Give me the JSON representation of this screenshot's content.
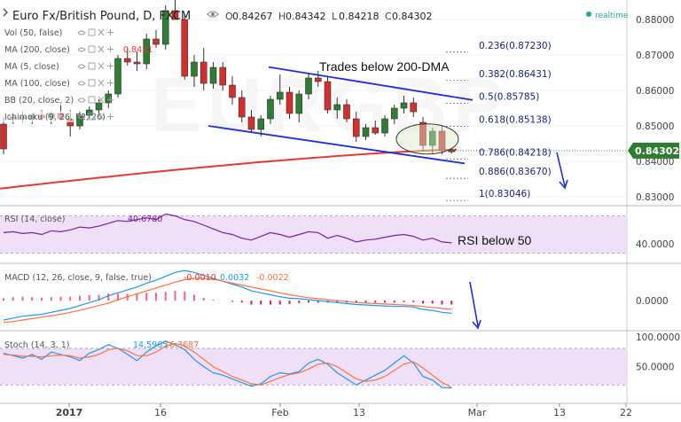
{
  "header": {
    "symbol": "Euro Fx/British Pound, D, FXCM",
    "ohlc": [
      {
        "k": "O",
        "v": "0.84267"
      },
      {
        "k": "H",
        "v": "0.84342"
      },
      {
        "k": "L",
        "v": "0.84218"
      },
      {
        "k": "C",
        "v": "0.84302"
      }
    ],
    "realtime_label": "realtime"
  },
  "indicators": [
    {
      "label": "Vol (50, false)",
      "value": ""
    },
    {
      "label": "MA (200, close)",
      "value": "0.8421"
    },
    {
      "label": "MA (5, close)",
      "value": ""
    },
    {
      "label": "MA (100, close)",
      "value": ""
    },
    {
      "label": "BB (20, close, 2)",
      "value": ""
    },
    {
      "label": "Ichimoku (9, 26, 52, 26)",
      "value": ""
    }
  ],
  "annotations": {
    "trades_below": "Trades below 200-DMA",
    "rsi_below": "RSI below 50"
  },
  "colors": {
    "up": "#26a69a",
    "down": "#ef5350",
    "candle_body_up": "#2e7d32",
    "candle_body_down": "#d32f2f",
    "ma200": "#e53935",
    "channel": "#1f2fd8",
    "price_tag": "#2e7d32",
    "rsi": "#7b1fa2",
    "macd": "#2196f3",
    "signal": "#ff7043",
    "stoch_k": "#2196f3",
    "stoch_d": "#ff7043",
    "band": "#efe0f8"
  },
  "chart_data": [
    {
      "type": "candlestick",
      "title": "Euro Fx/British Pound, D, FXCM",
      "price_axis": {
        "ticks": [
          "0.88000",
          "0.87000",
          "0.86000",
          "0.85000",
          "0.84000",
          "0.83000"
        ],
        "ylim": [
          0.8275,
          0.8855
        ]
      },
      "last_price": "0.84302",
      "x_tick_labels": [
        "2017",
        "16",
        "Feb",
        "13",
        "Mar",
        "13",
        "22"
      ],
      "fibonacci": [
        {
          "ratio": "0.236",
          "price": "0.87230"
        },
        {
          "ratio": "0.382",
          "price": "0.86431"
        },
        {
          "ratio": "0.5",
          "price": "0.85785"
        },
        {
          "ratio": "0.618",
          "price": "0.85138"
        },
        {
          "ratio": "0.786",
          "price": "0.84218"
        },
        {
          "ratio": "0.886",
          "price": "0.83670"
        },
        {
          "ratio": "1",
          "price": "0.83046"
        }
      ],
      "candles": [
        {
          "o": 0.8505,
          "h": 0.8525,
          "l": 0.842,
          "c": 0.8435
        },
        {
          "o": 0.852,
          "h": 0.8535,
          "l": 0.8505,
          "c": 0.8525
        },
        {
          "o": 0.8525,
          "h": 0.854,
          "l": 0.851,
          "c": 0.852
        },
        {
          "o": 0.852,
          "h": 0.8535,
          "l": 0.8505,
          "c": 0.853
        },
        {
          "o": 0.853,
          "h": 0.8545,
          "l": 0.8515,
          "c": 0.8522
        },
        {
          "o": 0.8522,
          "h": 0.854,
          "l": 0.8505,
          "c": 0.8535
        },
        {
          "o": 0.8535,
          "h": 0.856,
          "l": 0.8515,
          "c": 0.852
        },
        {
          "o": 0.852,
          "h": 0.8545,
          "l": 0.847,
          "c": 0.85
        },
        {
          "o": 0.85,
          "h": 0.854,
          "l": 0.849,
          "c": 0.853
        },
        {
          "o": 0.853,
          "h": 0.8555,
          "l": 0.852,
          "c": 0.8545
        },
        {
          "o": 0.8545,
          "h": 0.8575,
          "l": 0.853,
          "c": 0.8565
        },
        {
          "o": 0.8565,
          "h": 0.86,
          "l": 0.855,
          "c": 0.859
        },
        {
          "o": 0.859,
          "h": 0.87,
          "l": 0.858,
          "c": 0.869
        },
        {
          "o": 0.869,
          "h": 0.872,
          "l": 0.867,
          "c": 0.868
        },
        {
          "o": 0.868,
          "h": 0.871,
          "l": 0.8655,
          "c": 0.8675
        },
        {
          "o": 0.8675,
          "h": 0.876,
          "l": 0.866,
          "c": 0.8745
        },
        {
          "o": 0.8745,
          "h": 0.877,
          "l": 0.872,
          "c": 0.873
        },
        {
          "o": 0.873,
          "h": 0.884,
          "l": 0.8715,
          "c": 0.8825
        },
        {
          "o": 0.8825,
          "h": 0.888,
          "l": 0.88,
          "c": 0.88
        },
        {
          "o": 0.88,
          "h": 0.8815,
          "l": 0.863,
          "c": 0.864
        },
        {
          "o": 0.864,
          "h": 0.87,
          "l": 0.861,
          "c": 0.868
        },
        {
          "o": 0.868,
          "h": 0.872,
          "l": 0.86,
          "c": 0.862
        },
        {
          "o": 0.862,
          "h": 0.868,
          "l": 0.8605,
          "c": 0.8665
        },
        {
          "o": 0.8665,
          "h": 0.868,
          "l": 0.86,
          "c": 0.8615
        },
        {
          "o": 0.8615,
          "h": 0.864,
          "l": 0.856,
          "c": 0.858
        },
        {
          "o": 0.858,
          "h": 0.86,
          "l": 0.851,
          "c": 0.8525
        },
        {
          "o": 0.8525,
          "h": 0.8545,
          "l": 0.848,
          "c": 0.849
        },
        {
          "o": 0.849,
          "h": 0.853,
          "l": 0.847,
          "c": 0.852
        },
        {
          "o": 0.852,
          "h": 0.8585,
          "l": 0.8505,
          "c": 0.8575
        },
        {
          "o": 0.8575,
          "h": 0.8645,
          "l": 0.856,
          "c": 0.8595
        },
        {
          "o": 0.8595,
          "h": 0.861,
          "l": 0.852,
          "c": 0.8535
        },
        {
          "o": 0.8535,
          "h": 0.86,
          "l": 0.851,
          "c": 0.859
        },
        {
          "o": 0.859,
          "h": 0.865,
          "l": 0.8575,
          "c": 0.8635
        },
        {
          "o": 0.8635,
          "h": 0.8655,
          "l": 0.861,
          "c": 0.8625
        },
        {
          "o": 0.8625,
          "h": 0.864,
          "l": 0.8535,
          "c": 0.8545
        },
        {
          "o": 0.8545,
          "h": 0.858,
          "l": 0.852,
          "c": 0.856
        },
        {
          "o": 0.856,
          "h": 0.8575,
          "l": 0.851,
          "c": 0.852
        },
        {
          "o": 0.852,
          "h": 0.854,
          "l": 0.8455,
          "c": 0.847
        },
        {
          "o": 0.847,
          "h": 0.8505,
          "l": 0.846,
          "c": 0.8495
        },
        {
          "o": 0.8495,
          "h": 0.8515,
          "l": 0.8475,
          "c": 0.848
        },
        {
          "o": 0.848,
          "h": 0.853,
          "l": 0.847,
          "c": 0.852
        },
        {
          "o": 0.852,
          "h": 0.856,
          "l": 0.8505,
          "c": 0.855
        },
        {
          "o": 0.855,
          "h": 0.8585,
          "l": 0.8535,
          "c": 0.8565
        },
        {
          "o": 0.8565,
          "h": 0.858,
          "l": 0.8525,
          "c": 0.854
        },
        {
          "o": 0.851,
          "h": 0.8525,
          "l": 0.843,
          "c": 0.8445
        },
        {
          "o": 0.8445,
          "h": 0.8495,
          "l": 0.842,
          "c": 0.8485
        },
        {
          "o": 0.8485,
          "h": 0.85,
          "l": 0.842,
          "c": 0.843
        },
        {
          "o": 0.8427,
          "h": 0.8434,
          "l": 0.8422,
          "c": 0.843
        }
      ]
    },
    {
      "type": "line",
      "title": "RSI (14, close)",
      "value_label": "40.6780",
      "axis_label": "40.0000",
      "band": [
        30,
        70
      ],
      "values": [
        52,
        53,
        51,
        52,
        50,
        54,
        53,
        55,
        58,
        57,
        59,
        62,
        65,
        64,
        66,
        68,
        66,
        72,
        70,
        66,
        64,
        60,
        56,
        52,
        50,
        46,
        44,
        48,
        52,
        50,
        47,
        50,
        53,
        52,
        46,
        49,
        46,
        42,
        44,
        45,
        47,
        49,
        50,
        48,
        44,
        46,
        42,
        41
      ]
    },
    {
      "type": "line",
      "title": "MACD (12, 26, close, 9, false, true)",
      "value_labels": [
        "-0.0010",
        "0.0032",
        "-0.0022"
      ],
      "axis_label": "0.0000",
      "series": [
        {
          "name": "MACD",
          "values": [
            -0.004,
            -0.0036,
            -0.0032,
            -0.003,
            -0.0028,
            -0.0024,
            -0.002,
            -0.0016,
            -0.001,
            -0.0004,
            0.0002,
            0.001,
            0.0016,
            0.0022,
            0.0028,
            0.0036,
            0.0042,
            0.005,
            0.0058,
            0.0062,
            0.0058,
            0.0052,
            0.0046,
            0.004,
            0.0034,
            0.0028,
            0.002,
            0.0016,
            0.0012,
            0.0008,
            0.0005,
            0.0004,
            0.0002,
            0.0,
            -0.0002,
            -0.0004,
            -0.0006,
            -0.0008,
            -0.0009,
            -0.001,
            -0.0011,
            -0.0012,
            -0.0012,
            -0.0013,
            -0.0018,
            -0.002,
            -0.0024,
            -0.0026
          ]
        },
        {
          "name": "Signal",
          "values": [
            -0.0045,
            -0.0043,
            -0.004,
            -0.0037,
            -0.0034,
            -0.0031,
            -0.0028,
            -0.0024,
            -0.002,
            -0.0015,
            -0.001,
            -0.0005,
            0.0002,
            0.0008,
            0.0014,
            0.002,
            0.0026,
            0.0032,
            0.0038,
            0.0043,
            0.0046,
            0.0046,
            0.0044,
            0.004,
            0.0036,
            0.0032,
            0.0028,
            0.0024,
            0.002,
            0.0016,
            0.0012,
            0.0009,
            0.0006,
            0.0004,
            0.0002,
            0.0,
            -0.0002,
            -0.0004,
            -0.0005,
            -0.0006,
            -0.0007,
            -0.0008,
            -0.0009,
            -0.001,
            -0.0012,
            -0.0014,
            -0.0016,
            -0.0018
          ]
        }
      ],
      "histogram": [
        0.0005,
        0.0007,
        0.0008,
        0.0007,
        0.0006,
        0.0007,
        0.0008,
        0.0008,
        0.001,
        0.0011,
        0.0012,
        0.0015,
        0.0014,
        0.0014,
        0.0014,
        0.0016,
        0.0016,
        0.0018,
        0.002,
        0.0019,
        0.0012,
        0.0006,
        0.0002,
        0.0,
        -0.0002,
        -0.0004,
        -0.0008,
        -0.0008,
        -0.0008,
        -0.0008,
        -0.0007,
        -0.0005,
        -0.0004,
        -0.0004,
        -0.0004,
        -0.0004,
        -0.0004,
        -0.0004,
        -0.0004,
        -0.0004,
        -0.0004,
        -0.0004,
        -0.0003,
        -0.0003,
        -0.0006,
        -0.0006,
        -0.0008,
        -0.0008
      ]
    },
    {
      "type": "line",
      "title": "Stoch (14, 3, 1)",
      "value_labels": [
        "14.5965",
        "16.3687"
      ],
      "axis_ticks": [
        "100.0000",
        "50.0000"
      ],
      "band": [
        20,
        80
      ],
      "series": [
        {
          "name": "%K",
          "values": [
            72,
            68,
            64,
            70,
            62,
            74,
            70,
            66,
            60,
            72,
            78,
            86,
            80,
            70,
            60,
            74,
            84,
            92,
            86,
            78,
            62,
            50,
            40,
            36,
            30,
            24,
            18,
            22,
            34,
            40,
            38,
            42,
            56,
            62,
            54,
            40,
            30,
            20,
            28,
            36,
            44,
            56,
            68,
            56,
            34,
            28,
            16,
            15
          ]
        },
        {
          "name": "%D",
          "values": [
            70,
            69,
            67,
            67,
            66,
            68,
            69,
            68,
            64,
            66,
            70,
            78,
            80,
            76,
            68,
            68,
            74,
            84,
            88,
            84,
            74,
            62,
            50,
            42,
            34,
            28,
            22,
            20,
            26,
            32,
            37,
            40,
            46,
            54,
            56,
            50,
            40,
            30,
            26,
            28,
            34,
            44,
            54,
            58,
            48,
            36,
            24,
            16
          ]
        }
      ]
    }
  ]
}
